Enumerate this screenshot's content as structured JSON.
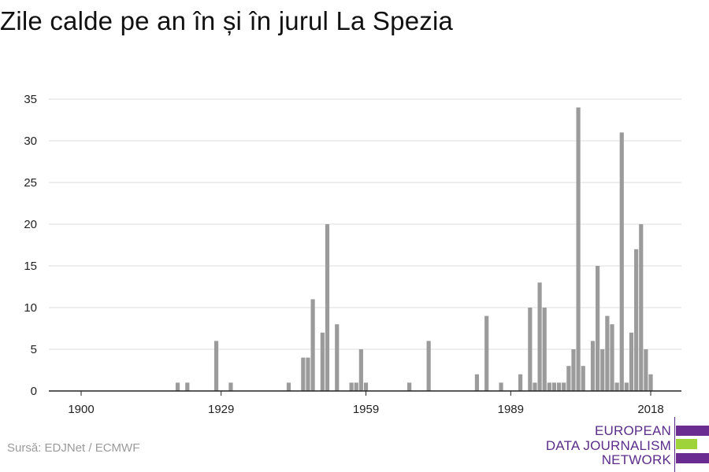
{
  "title": "Zile calde pe an în și în jurul La Spezia",
  "source": "Sursă: EDJNet / ECMWF",
  "logo": {
    "line1": "EUROPEAN",
    "line2": "DATA JOURNALISM",
    "line3": "NETWORK",
    "colors": {
      "purple": "#6a2c91",
      "green": "#9ed33a",
      "text": "#5b2d8a"
    }
  },
  "colors": {
    "bar": "#9b9b9b",
    "grid": "#dddddd",
    "axis": "#222222",
    "tick_label": "#222222"
  },
  "chart_data": {
    "type": "bar",
    "title": "Zile calde pe an în și în jurul La Spezia",
    "xlabel": "",
    "ylabel": "",
    "xlim": [
      1900,
      2018
    ],
    "ylim": [
      0,
      35
    ],
    "x_ticks": [
      1900,
      1929,
      1959,
      1989,
      2018
    ],
    "y_ticks": [
      0,
      5,
      10,
      15,
      20,
      25,
      30,
      35
    ],
    "grid": "horizontal",
    "legend": "none",
    "x": [
      1920,
      1922,
      1928,
      1931,
      1943,
      1946,
      1947,
      1948,
      1950,
      1951,
      1953,
      1956,
      1957,
      1958,
      1959,
      1968,
      1972,
      1982,
      1984,
      1987,
      1991,
      1993,
      1994,
      1995,
      1996,
      1997,
      1998,
      1999,
      2000,
      2001,
      2002,
      2003,
      2004,
      2006,
      2007,
      2008,
      2009,
      2010,
      2011,
      2012,
      2013,
      2014,
      2015,
      2016,
      2017,
      2018
    ],
    "values": [
      1,
      1,
      6,
      1,
      1,
      4,
      4,
      11,
      7,
      20,
      8,
      1,
      1,
      5,
      1,
      1,
      6,
      2,
      9,
      1,
      2,
      10,
      1,
      13,
      10,
      1,
      1,
      1,
      1,
      3,
      5,
      34,
      3,
      6,
      15,
      5,
      9,
      8,
      1,
      31,
      1,
      7,
      17,
      20,
      5,
      2
    ]
  }
}
